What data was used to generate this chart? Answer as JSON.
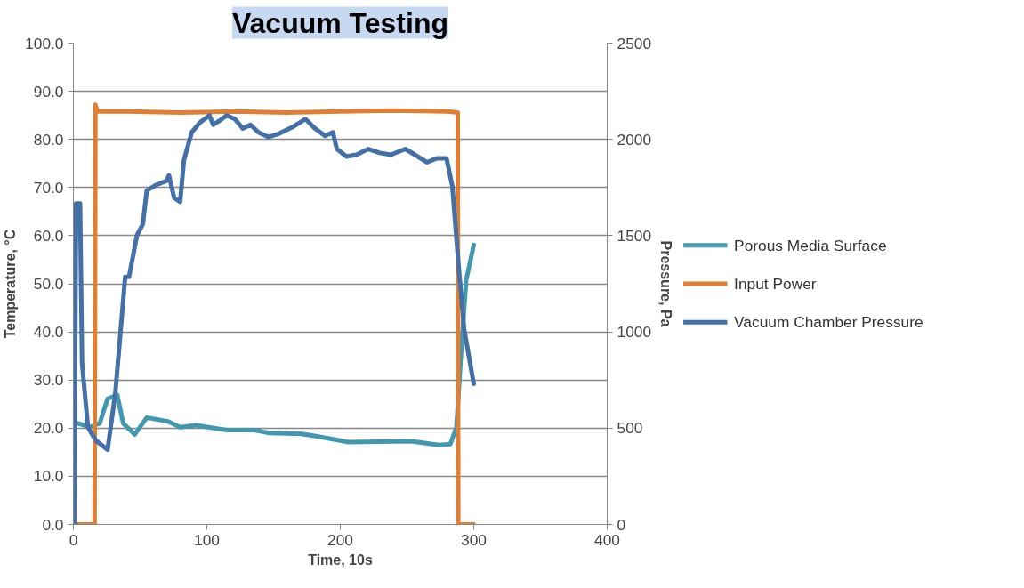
{
  "chart_data": {
    "type": "line",
    "title": "Vacuum Testing",
    "xlabel": "Time, 10s",
    "ylabel": "Temperature, °C",
    "y2label": "Pressure, Pa",
    "xlim": [
      0,
      400
    ],
    "xticks": [
      0,
      100,
      200,
      300,
      400
    ],
    "ylim": [
      0,
      100
    ],
    "yticks": [
      {
        "value": 0,
        "label": "0.0"
      },
      {
        "value": 10,
        "label": "10.0"
      },
      {
        "value": 20,
        "label": "20.0"
      },
      {
        "value": 30,
        "label": "30.0"
      },
      {
        "value": 40,
        "label": "40.0"
      },
      {
        "value": 50,
        "label": "50.0"
      },
      {
        "value": 60,
        "label": "60.0"
      },
      {
        "value": 70,
        "label": "70.0"
      },
      {
        "value": 80,
        "label": "80.0"
      },
      {
        "value": 90,
        "label": "90.0"
      },
      {
        "value": 100,
        "label": "100.0"
      }
    ],
    "y2lim": [
      0,
      2500
    ],
    "y2ticks": [
      0,
      500,
      1000,
      1500,
      2000,
      2500
    ],
    "grid": "y",
    "legend": "right",
    "marker": "none",
    "line_style": "solid",
    "series": [
      {
        "name": "Porous Media Surface",
        "color": "#4198af",
        "x": [
          3.5,
          12.3,
          19.7,
          25.6,
          32.9,
          37.3,
          46,
          55,
          71,
          80,
          91.6,
          115,
          135.7,
          147,
          171,
          182.7,
          206,
          253,
          274,
          282.5,
          287,
          291.3,
          294.3,
          300
        ],
        "values": [
          21,
          20.2,
          21,
          26.1,
          26.9,
          21,
          18.7,
          22.2,
          21.4,
          20.2,
          20.6,
          19.6,
          19.6,
          19,
          18.8,
          18.3,
          17.1,
          17.3,
          16.5,
          16.7,
          20.2,
          39,
          50.7,
          58.1
        ]
      },
      {
        "name": "Input Power",
        "color": "#e07f33",
        "x": [
          0,
          15.9,
          16.5,
          18,
          40,
          80,
          120,
          160,
          200,
          240,
          280,
          288,
          288.4,
          300
        ],
        "values": [
          0,
          0,
          87.2,
          85.8,
          85.8,
          85.6,
          85.8,
          85.6,
          85.8,
          86,
          85.8,
          85.6,
          0,
          0
        ]
      },
      {
        "name": "Vacuum Chamber Pressure",
        "color": "#4470a8",
        "axis": "y2",
        "x": [
          0.6,
          2,
          5,
          6.5,
          10.9,
          16.7,
          25.6,
          31.4,
          38.8,
          41.7,
          47.6,
          52,
          55,
          62.3,
          69.6,
          71.6,
          75.5,
          80,
          82.8,
          88.7,
          94.6,
          101.9,
          104.8,
          109.2,
          115,
          121,
          126.9,
          132.7,
          138.6,
          146,
          153.3,
          165,
          173.9,
          181,
          188.6,
          194.4,
          197.4,
          204.7,
          212,
          221,
          229.6,
          238,
          248.7,
          256,
          264.9,
          272,
          279.6,
          284,
          288.4,
          292.8,
          300
        ],
        "values": [
          0,
          1667,
          1667,
          837,
          505,
          437,
          388,
          681,
          1286,
          1286,
          1501,
          1559,
          1735,
          1764,
          1784,
          1813,
          1696,
          1676,
          1891,
          2037,
          2086,
          2125,
          2076,
          2096,
          2125,
          2106,
          2057,
          2076,
          2037,
          2012,
          2028,
          2067,
          2106,
          2057,
          2018,
          2037,
          1950,
          1911,
          1920,
          1950,
          1930,
          1920,
          1950,
          1920,
          1881,
          1901,
          1901,
          1755,
          1364,
          1013,
          730
        ]
      }
    ]
  }
}
